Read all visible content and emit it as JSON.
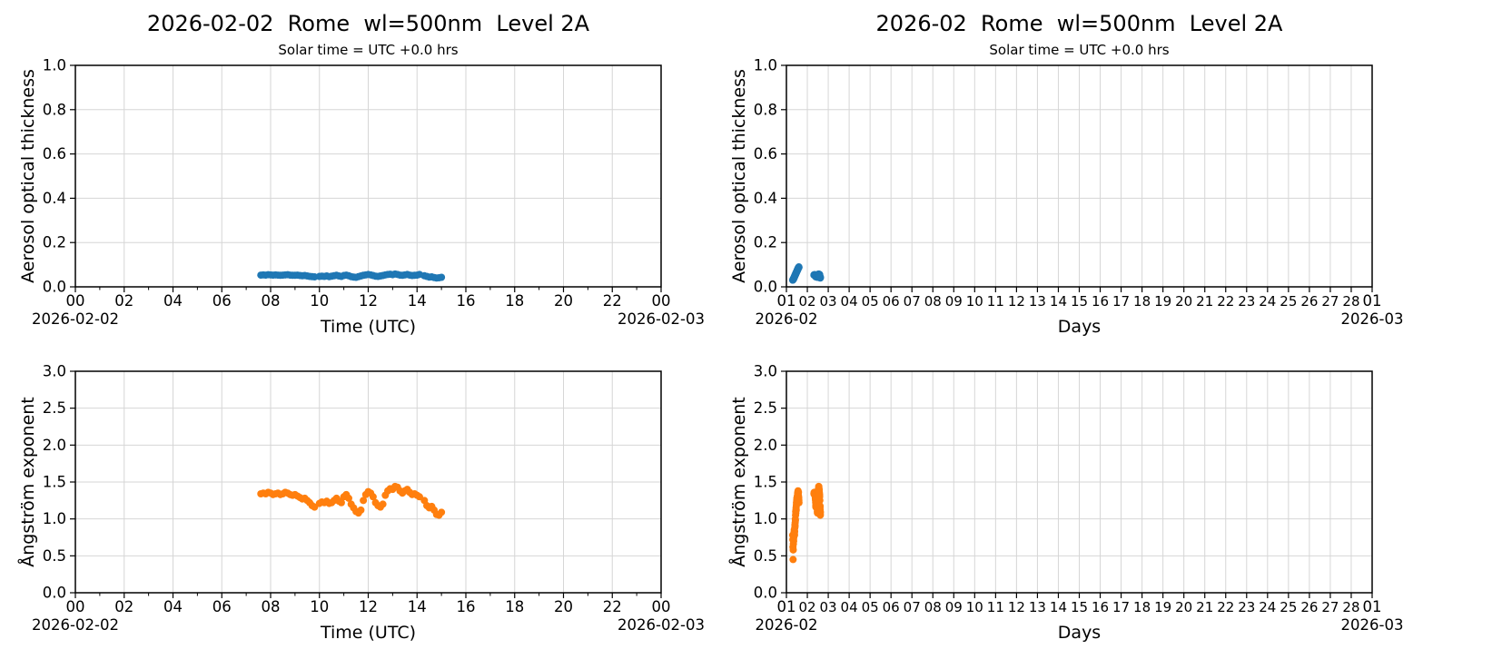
{
  "figure": {
    "background": "#ffffff",
    "station": "Rome",
    "wavelength": "wl=500nm",
    "data_level": "Level 2A"
  },
  "chart_data": {
    "type": "scatter",
    "colors": {
      "aot_series": "#1f77b4",
      "angstrom_series": "#ff7f0e",
      "grid": "#d6d6d6",
      "axis": "#000000"
    },
    "measurements": {
      "2026-02-01": {
        "hours": [
          7.2,
          7.35,
          7.5,
          7.65,
          7.8,
          7.95,
          8.1,
          8.25,
          8.4,
          8.55,
          8.7,
          8.85,
          9.0,
          9.15,
          9.3,
          9.45,
          9.6,
          9.75,
          9.9,
          10.05,
          10.2,
          10.35,
          10.5,
          10.65,
          10.8,
          10.95,
          11.1,
          11.25,
          11.4,
          11.55,
          11.7,
          11.85,
          12.0,
          12.15,
          12.3,
          12.45,
          12.6,
          12.75,
          12.9,
          13.05,
          13.2,
          13.35,
          13.5,
          13.65,
          13.8,
          13.95,
          14.1,
          14.25,
          14.4
        ],
        "aot500": [
          0.03,
          0.032,
          0.031,
          0.033,
          0.035,
          0.034,
          0.036,
          0.038,
          0.037,
          0.04,
          0.042,
          0.041,
          0.044,
          0.046,
          0.045,
          0.048,
          0.05,
          0.049,
          0.052,
          0.054,
          0.053,
          0.056,
          0.058,
          0.057,
          0.06,
          0.062,
          0.061,
          0.064,
          0.066,
          0.065,
          0.068,
          0.07,
          0.069,
          0.072,
          0.074,
          0.073,
          0.076,
          0.078,
          0.077,
          0.08,
          0.082,
          0.081,
          0.084,
          0.086,
          0.085,
          0.088,
          0.087,
          0.09,
          0.088
        ],
        "angstrom": [
          0.78,
          0.72,
          0.62,
          0.45,
          0.58,
          0.66,
          0.72,
          0.7,
          0.75,
          0.8,
          0.78,
          0.82,
          0.85,
          0.8,
          0.78,
          0.83,
          0.88,
          0.92,
          0.9,
          0.95,
          1.0,
          0.98,
          1.05,
          1.1,
          1.08,
          1.12,
          1.15,
          1.12,
          1.18,
          1.22,
          1.2,
          1.25,
          1.28,
          1.24,
          1.26,
          1.3,
          1.28,
          1.32,
          1.35,
          1.33,
          1.36,
          1.38,
          1.35,
          1.32,
          1.36,
          1.3,
          1.28,
          1.25,
          1.22
        ]
      },
      "2026-02-02": {
        "hours": [
          7.6,
          7.7,
          7.8,
          7.9,
          8.0,
          8.1,
          8.2,
          8.3,
          8.4,
          8.5,
          8.6,
          8.7,
          8.8,
          8.9,
          9.0,
          9.1,
          9.2,
          9.3,
          9.4,
          9.5,
          9.6,
          9.7,
          9.8,
          10.0,
          10.1,
          10.2,
          10.3,
          10.4,
          10.5,
          10.6,
          10.7,
          10.8,
          10.9,
          11.0,
          11.1,
          11.2,
          11.3,
          11.4,
          11.5,
          11.6,
          11.7,
          11.8,
          11.9,
          12.0,
          12.1,
          12.2,
          12.3,
          12.4,
          12.5,
          12.6,
          12.7,
          12.8,
          12.9,
          13.0,
          13.1,
          13.2,
          13.3,
          13.4,
          13.5,
          13.6,
          13.7,
          13.8,
          13.9,
          14.0,
          14.1,
          14.3,
          14.4,
          14.5,
          14.6,
          14.7,
          14.8,
          14.9,
          15.0
        ],
        "aot500": [
          0.053,
          0.054,
          0.053,
          0.055,
          0.054,
          0.053,
          0.054,
          0.053,
          0.052,
          0.053,
          0.054,
          0.055,
          0.053,
          0.052,
          0.052,
          0.053,
          0.051,
          0.05,
          0.051,
          0.049,
          0.047,
          0.046,
          0.045,
          0.047,
          0.048,
          0.047,
          0.049,
          0.046,
          0.048,
          0.05,
          0.052,
          0.049,
          0.047,
          0.051,
          0.053,
          0.05,
          0.046,
          0.044,
          0.043,
          0.046,
          0.049,
          0.052,
          0.054,
          0.056,
          0.054,
          0.051,
          0.048,
          0.047,
          0.049,
          0.051,
          0.054,
          0.056,
          0.057,
          0.055,
          0.058,
          0.056,
          0.053,
          0.052,
          0.054,
          0.056,
          0.053,
          0.051,
          0.052,
          0.053,
          0.056,
          0.05,
          0.047,
          0.044,
          0.045,
          0.042,
          0.04,
          0.041,
          0.043
        ],
        "angstrom": [
          1.34,
          1.35,
          1.34,
          1.36,
          1.35,
          1.33,
          1.34,
          1.35,
          1.33,
          1.34,
          1.36,
          1.35,
          1.33,
          1.32,
          1.33,
          1.31,
          1.29,
          1.27,
          1.28,
          1.25,
          1.22,
          1.18,
          1.16,
          1.21,
          1.23,
          1.22,
          1.24,
          1.21,
          1.22,
          1.25,
          1.28,
          1.24,
          1.22,
          1.3,
          1.33,
          1.28,
          1.2,
          1.15,
          1.1,
          1.08,
          1.12,
          1.25,
          1.33,
          1.37,
          1.35,
          1.3,
          1.22,
          1.18,
          1.16,
          1.2,
          1.32,
          1.38,
          1.41,
          1.4,
          1.44,
          1.43,
          1.38,
          1.35,
          1.38,
          1.4,
          1.36,
          1.33,
          1.34,
          1.32,
          1.3,
          1.25,
          1.18,
          1.15,
          1.17,
          1.12,
          1.06,
          1.05,
          1.09
        ]
      }
    },
    "panels": [
      {
        "id": "aot-daily",
        "title": "2026-02-02  Rome  wl=500nm  Level 2A",
        "subtitle": "Solar time = UTC +0.0 hrs",
        "xlabel": "Time (UTC)",
        "ylabel": "Aerosol optical thickness",
        "x_mode": "hours",
        "xlim": [
          0,
          24
        ],
        "xticks": [
          0,
          2,
          4,
          6,
          8,
          10,
          12,
          14,
          16,
          18,
          20,
          22,
          24
        ],
        "xtick_labels": [
          "00",
          "02",
          "04",
          "06",
          "08",
          "10",
          "12",
          "14",
          "16",
          "18",
          "20",
          "22",
          "00"
        ],
        "x_minor_step": 1,
        "x_left_date": "2026-02-02",
        "x_right_date": "2026-02-03",
        "ylim": [
          0,
          1.0
        ],
        "yticks": [
          0,
          0.2,
          0.4,
          0.6,
          0.8,
          1.0
        ],
        "ytick_labels": [
          "0.0",
          "0.2",
          "0.4",
          "0.6",
          "0.8",
          "1.0"
        ],
        "color": "#1f77b4",
        "marker_diameter": 8,
        "series": [
          {
            "date": "2026-02-02",
            "field": "aot500"
          }
        ]
      },
      {
        "id": "aot-monthly",
        "title": "2026-02  Rome  wl=500nm  Level 2A",
        "subtitle": "Solar time = UTC +0.0 hrs",
        "xlabel": "Days",
        "ylabel": "Aerosol optical thickness",
        "x_mode": "days",
        "xlim": [
          1,
          29
        ],
        "xticks": [
          1,
          2,
          3,
          4,
          5,
          6,
          7,
          8,
          9,
          10,
          11,
          12,
          13,
          14,
          15,
          16,
          17,
          18,
          19,
          20,
          21,
          22,
          23,
          24,
          25,
          26,
          27,
          28,
          29
        ],
        "xtick_labels": [
          "01",
          "02",
          "03",
          "04",
          "05",
          "06",
          "07",
          "08",
          "09",
          "10",
          "11",
          "12",
          "13",
          "14",
          "15",
          "16",
          "17",
          "18",
          "19",
          "20",
          "21",
          "22",
          "23",
          "24",
          "25",
          "26",
          "27",
          "28",
          "01"
        ],
        "x_minor_step": null,
        "x_left_date": "2026-02",
        "x_right_date": "2026-03",
        "ylim": [
          0,
          1.0
        ],
        "yticks": [
          0,
          0.2,
          0.4,
          0.6,
          0.8,
          1.0
        ],
        "ytick_labels": [
          "0.0",
          "0.2",
          "0.4",
          "0.6",
          "0.8",
          "1.0"
        ],
        "color": "#1f77b4",
        "marker_diameter": 8,
        "series": [
          {
            "date": "2026-02-01",
            "field": "aot500"
          },
          {
            "date": "2026-02-02",
            "field": "aot500"
          }
        ]
      },
      {
        "id": "angstrom-daily",
        "title": "",
        "subtitle": "",
        "xlabel": "Time (UTC)",
        "ylabel": "Ångström exponent",
        "x_mode": "hours",
        "xlim": [
          0,
          24
        ],
        "xticks": [
          0,
          2,
          4,
          6,
          8,
          10,
          12,
          14,
          16,
          18,
          20,
          22,
          24
        ],
        "xtick_labels": [
          "00",
          "02",
          "04",
          "06",
          "08",
          "10",
          "12",
          "14",
          "16",
          "18",
          "20",
          "22",
          "00"
        ],
        "x_minor_step": 1,
        "x_left_date": "2026-02-02",
        "x_right_date": "2026-02-03",
        "ylim": [
          0,
          3.0
        ],
        "yticks": [
          0,
          0.5,
          1.0,
          1.5,
          2.0,
          2.5,
          3.0
        ],
        "ytick_labels": [
          "0.0",
          "0.5",
          "1.0",
          "1.5",
          "2.0",
          "2.5",
          "3.0"
        ],
        "color": "#ff7f0e",
        "marker_diameter": 8,
        "series": [
          {
            "date": "2026-02-02",
            "field": "angstrom"
          }
        ]
      },
      {
        "id": "angstrom-monthly",
        "title": "",
        "subtitle": "",
        "xlabel": "Days",
        "ylabel": "Ångström exponent",
        "x_mode": "days",
        "xlim": [
          1,
          29
        ],
        "xticks": [
          1,
          2,
          3,
          4,
          5,
          6,
          7,
          8,
          9,
          10,
          11,
          12,
          13,
          14,
          15,
          16,
          17,
          18,
          19,
          20,
          21,
          22,
          23,
          24,
          25,
          26,
          27,
          28,
          29
        ],
        "xtick_labels": [
          "01",
          "02",
          "03",
          "04",
          "05",
          "06",
          "07",
          "08",
          "09",
          "10",
          "11",
          "12",
          "13",
          "14",
          "15",
          "16",
          "17",
          "18",
          "19",
          "20",
          "21",
          "22",
          "23",
          "24",
          "25",
          "26",
          "27",
          "28",
          "01"
        ],
        "x_minor_step": null,
        "x_left_date": "2026-02",
        "x_right_date": "2026-03",
        "ylim": [
          0,
          3.0
        ],
        "yticks": [
          0,
          0.5,
          1.0,
          1.5,
          2.0,
          2.5,
          3.0
        ],
        "ytick_labels": [
          "0.0",
          "0.5",
          "1.0",
          "1.5",
          "2.0",
          "2.5",
          "3.0"
        ],
        "color": "#ff7f0e",
        "marker_diameter": 8,
        "series": [
          {
            "date": "2026-02-01",
            "field": "angstrom"
          },
          {
            "date": "2026-02-02",
            "field": "angstrom"
          }
        ]
      }
    ]
  }
}
